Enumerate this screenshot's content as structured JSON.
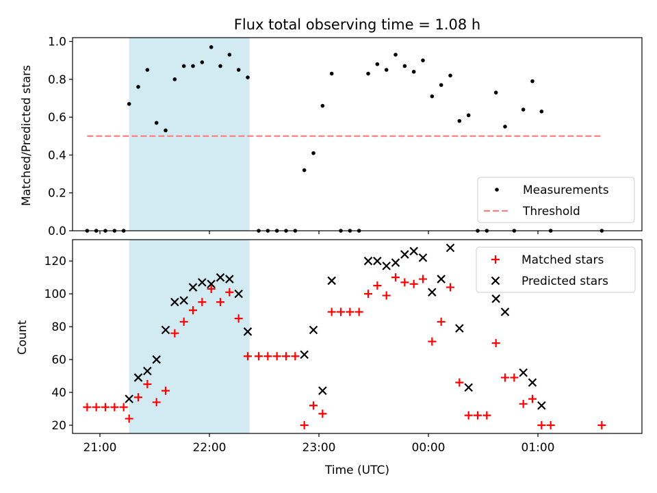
{
  "chart_data": [
    {
      "type": "scatter",
      "title": "Flux total observing time = 1.08 h",
      "xlabel": "",
      "ylabel": "Matched/Predicted stars",
      "xlim": [
        "20:45",
        "01:57"
      ],
      "ylim": [
        0,
        1.02
      ],
      "yticks": [
        "0.0",
        "0.2",
        "0.4",
        "0.6",
        "0.8",
        "1.0"
      ],
      "grid": false,
      "legend": "bottom-right",
      "shaded_span": [
        "21:16",
        "22:22"
      ],
      "shaded_color": "#add8e6",
      "series": [
        {
          "name": "Measurements",
          "color": "#000000",
          "marker": "dot",
          "points": [
            [
              "20:53",
              0.0
            ],
            [
              "20:58",
              0.0
            ],
            [
              "21:03",
              0.0
            ],
            [
              "21:08",
              0.0
            ],
            [
              "21:13",
              0.0
            ],
            [
              "21:16",
              0.67
            ],
            [
              "21:21",
              0.76
            ],
            [
              "21:26",
              0.85
            ],
            [
              "21:31",
              0.57
            ],
            [
              "21:36",
              0.53
            ],
            [
              "21:41",
              0.8
            ],
            [
              "21:46",
              0.87
            ],
            [
              "21:51",
              0.87
            ],
            [
              "21:56",
              0.89
            ],
            [
              "22:01",
              0.97
            ],
            [
              "22:06",
              0.87
            ],
            [
              "22:11",
              0.93
            ],
            [
              "22:16",
              0.85
            ],
            [
              "22:21",
              0.81
            ],
            [
              "22:27",
              0.0
            ],
            [
              "22:32",
              0.0
            ],
            [
              "22:37",
              0.0
            ],
            [
              "22:42",
              0.0
            ],
            [
              "22:47",
              0.0
            ],
            [
              "22:52",
              0.32
            ],
            [
              "22:57",
              0.41
            ],
            [
              "23:02",
              0.66
            ],
            [
              "23:07",
              0.83
            ],
            [
              "23:12",
              0.0
            ],
            [
              "23:17",
              0.0
            ],
            [
              "23:22",
              0.0
            ],
            [
              "23:27",
              0.83
            ],
            [
              "23:32",
              0.88
            ],
            [
              "23:37",
              0.85
            ],
            [
              "23:42",
              0.93
            ],
            [
              "23:47",
              0.87
            ],
            [
              "23:52",
              0.84
            ],
            [
              "23:57",
              0.9
            ],
            [
              "00:02",
              0.71
            ],
            [
              "00:07",
              0.77
            ],
            [
              "00:12",
              0.82
            ],
            [
              "00:17",
              0.58
            ],
            [
              "00:22",
              0.61
            ],
            [
              "00:27",
              0.0
            ],
            [
              "00:32",
              0.0
            ],
            [
              "00:37",
              0.73
            ],
            [
              "00:42",
              0.55
            ],
            [
              "00:47",
              0.0
            ],
            [
              "00:52",
              0.64
            ],
            [
              "00:57",
              0.79
            ],
            [
              "01:02",
              0.63
            ],
            [
              "01:07",
              0.0
            ],
            [
              "01:35",
              0.0
            ]
          ]
        },
        {
          "name": "Threshold",
          "color": "#ff7f7f",
          "marker": "dashed-line",
          "points": [
            [
              "20:53",
              0.5
            ],
            [
              "01:35",
              0.5
            ]
          ]
        }
      ]
    },
    {
      "type": "scatter",
      "title": "",
      "xlabel": "Time (UTC)",
      "ylabel": "Count",
      "xlim": [
        "20:45",
        "01:57"
      ],
      "ylim": [
        15,
        133
      ],
      "yticks": [
        "20",
        "40",
        "60",
        "80",
        "100",
        "120"
      ],
      "xticks": [
        "21:00",
        "22:00",
        "23:00",
        "00:00",
        "01:00"
      ],
      "grid": false,
      "legend": "top-right",
      "shaded_span": [
        "21:16",
        "22:22"
      ],
      "shaded_color": "#add8e6",
      "series": [
        {
          "name": "Matched stars",
          "color": "#ff0000",
          "marker": "plus",
          "points": [
            [
              "20:53",
              31
            ],
            [
              "20:58",
              31
            ],
            [
              "21:03",
              31
            ],
            [
              "21:08",
              31
            ],
            [
              "21:13",
              31
            ],
            [
              "21:16",
              24
            ],
            [
              "21:21",
              37
            ],
            [
              "21:26",
              45
            ],
            [
              "21:31",
              34
            ],
            [
              "21:36",
              41
            ],
            [
              "21:41",
              76
            ],
            [
              "21:46",
              83
            ],
            [
              "21:51",
              90
            ],
            [
              "21:56",
              95
            ],
            [
              "22:01",
              103
            ],
            [
              "22:06",
              95
            ],
            [
              "22:11",
              101
            ],
            [
              "22:16",
              85
            ],
            [
              "22:21",
              62
            ],
            [
              "22:27",
              62
            ],
            [
              "22:32",
              62
            ],
            [
              "22:37",
              62
            ],
            [
              "22:42",
              62
            ],
            [
              "22:47",
              62
            ],
            [
              "22:52",
              20
            ],
            [
              "22:57",
              32
            ],
            [
              "23:02",
              27
            ],
            [
              "23:07",
              89
            ],
            [
              "23:12",
              89
            ],
            [
              "23:17",
              89
            ],
            [
              "23:22",
              89
            ],
            [
              "23:27",
              100
            ],
            [
              "23:32",
              105
            ],
            [
              "23:37",
              99
            ],
            [
              "23:42",
              110
            ],
            [
              "23:47",
              107
            ],
            [
              "23:52",
              106
            ],
            [
              "23:57",
              109
            ],
            [
              "00:02",
              71
            ],
            [
              "00:07",
              83
            ],
            [
              "00:12",
              104
            ],
            [
              "00:17",
              46
            ],
            [
              "00:22",
              26
            ],
            [
              "00:27",
              26
            ],
            [
              "00:32",
              26
            ],
            [
              "00:37",
              70
            ],
            [
              "00:42",
              49
            ],
            [
              "00:47",
              49
            ],
            [
              "00:52",
              33
            ],
            [
              "00:57",
              36
            ],
            [
              "01:02",
              20
            ],
            [
              "01:07",
              20
            ],
            [
              "01:35",
              20
            ]
          ]
        },
        {
          "name": "Predicted stars",
          "color": "#000000",
          "marker": "x",
          "points": [
            [
              "21:16",
              36
            ],
            [
              "21:21",
              49
            ],
            [
              "21:26",
              53
            ],
            [
              "21:31",
              60
            ],
            [
              "21:36",
              78
            ],
            [
              "21:41",
              95
            ],
            [
              "21:46",
              96
            ],
            [
              "21:51",
              104
            ],
            [
              "21:56",
              107
            ],
            [
              "22:01",
              106
            ],
            [
              "22:06",
              110
            ],
            [
              "22:11",
              109
            ],
            [
              "22:16",
              100
            ],
            [
              "22:21",
              77
            ],
            [
              "22:52",
              63
            ],
            [
              "22:57",
              78
            ],
            [
              "23:02",
              41
            ],
            [
              "23:07",
              108
            ],
            [
              "23:27",
              120
            ],
            [
              "23:32",
              120
            ],
            [
              "23:37",
              117
            ],
            [
              "23:42",
              119
            ],
            [
              "23:47",
              124
            ],
            [
              "23:52",
              126
            ],
            [
              "23:57",
              122
            ],
            [
              "00:02",
              101
            ],
            [
              "00:07",
              109
            ],
            [
              "00:12",
              128
            ],
            [
              "00:17",
              79
            ],
            [
              "00:22",
              43
            ],
            [
              "00:37",
              97
            ],
            [
              "00:42",
              89
            ],
            [
              "00:52",
              52
            ],
            [
              "00:57",
              46
            ],
            [
              "01:02",
              32
            ]
          ]
        }
      ]
    }
  ]
}
